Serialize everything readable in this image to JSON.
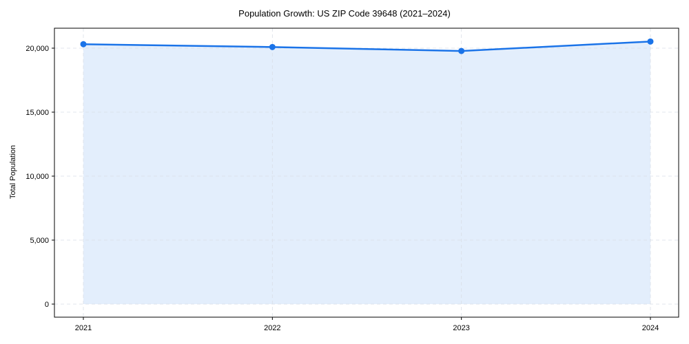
{
  "chart_data": {
    "type": "line",
    "title": "Population Growth: US ZIP Code 39648 (2021–2024)",
    "xlabel": "",
    "ylabel": "Total Population",
    "categories": [
      "2021",
      "2022",
      "2023",
      "2024"
    ],
    "series": [
      {
        "name": "Total Population",
        "values": [
          20310,
          20090,
          19780,
          20520
        ],
        "color": "#1a73e8",
        "fill": "#e3eefc",
        "marker": "circle"
      }
    ],
    "yticks": [
      0,
      5000,
      10000,
      15000,
      20000
    ],
    "ytick_labels": [
      "0",
      "5,000",
      "10,000",
      "15,000",
      "20,000"
    ],
    "ylim": [
      -1050,
      21600
    ],
    "grid": true,
    "legend": "none",
    "area_fill": true
  }
}
